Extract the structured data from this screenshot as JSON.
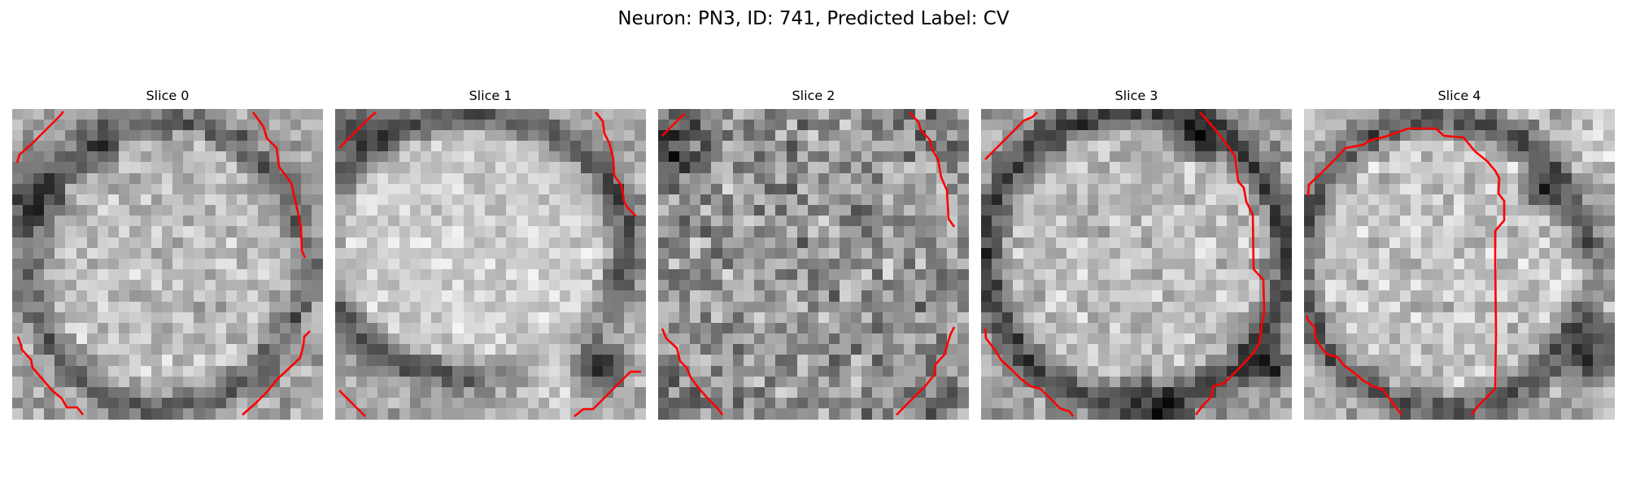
{
  "figure": {
    "title": "Neuron: PN3, ID: 741, Predicted Label: CV"
  },
  "colors": {
    "contour": "#ff0000",
    "background": "#ffffff"
  },
  "colormap": "grayscale",
  "slices": [
    {
      "title": "Slice 0"
    },
    {
      "title": "Slice 1"
    },
    {
      "title": "Slice 2"
    },
    {
      "title": "Slice 3"
    },
    {
      "title": "Slice 4"
    }
  ]
}
